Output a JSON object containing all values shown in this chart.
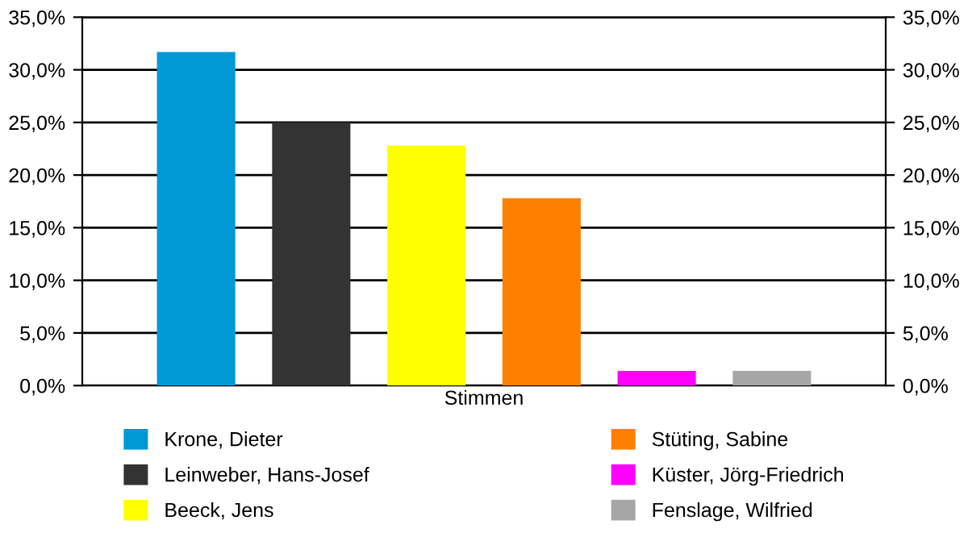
{
  "chart_data": {
    "type": "bar",
    "categories": [
      "Stimmen"
    ],
    "series": [
      {
        "name": "Krone, Dieter",
        "color": "#0099d6",
        "values": [
          31.7
        ]
      },
      {
        "name": "Leinweber, Hans-Josef",
        "color": "#333333",
        "values": [
          25.0
        ]
      },
      {
        "name": "Beeck, Jens",
        "color": "#ffff00",
        "values": [
          22.8
        ]
      },
      {
        "name": "Stüting, Sabine",
        "color": "#ff8000",
        "values": [
          17.8
        ]
      },
      {
        "name": "Küster, Jörg-Friedrich",
        "color": "#ff00ff",
        "values": [
          1.4
        ]
      },
      {
        "name": "Fenslage, Wilfried",
        "color": "#a6a6a6",
        "values": [
          1.4
        ]
      }
    ],
    "ylim": [
      0,
      35
    ],
    "yticks": [
      {
        "value": 0,
        "label": "0,0%"
      },
      {
        "value": 5,
        "label": "5,0%"
      },
      {
        "value": 10,
        "label": "10,0%"
      },
      {
        "value": 15,
        "label": "15,0%"
      },
      {
        "value": 20,
        "label": "20,0%"
      },
      {
        "value": 25,
        "label": "25,0%"
      },
      {
        "value": 30,
        "label": "30,0%"
      },
      {
        "value": 35,
        "label": "35,0%"
      }
    ],
    "grid": "y",
    "legend": "bottom"
  }
}
